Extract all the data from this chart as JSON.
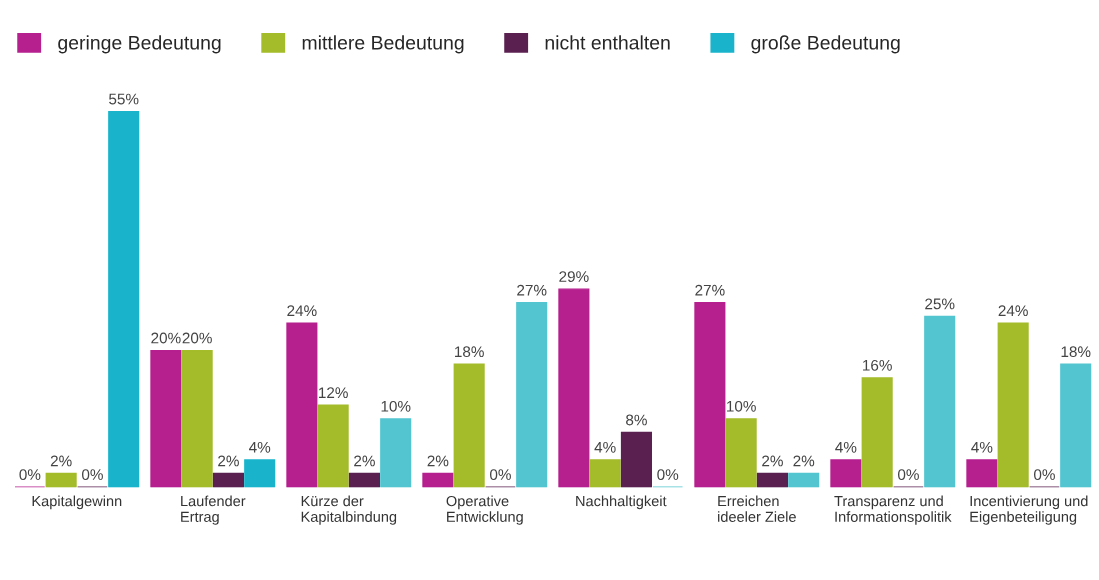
{
  "chart_data": {
    "type": "bar",
    "categories": [
      "Kapitalgewinn",
      "Laufender\nErtrag",
      "Kürze der\nKapitalbindung",
      "Operative\nEntwicklung",
      "Nachhaltigkeit",
      "Erreichen\nideeler Ziele",
      "Transparenz und\nInformationspolitik",
      "Incentivierung und\nEigenbeteiligung"
    ],
    "series": [
      {
        "name": "geringe Bedeutung",
        "color": "#b51f8e",
        "values": [
          0,
          20,
          24,
          2,
          29,
          27,
          4,
          4
        ],
        "value_labels": [
          "0%",
          "20%",
          "24%",
          "2%",
          "29%",
          "27%",
          "4%",
          "4%"
        ]
      },
      {
        "name": "mittlere Bedeutung",
        "color": "#a4bb2a",
        "values": [
          2,
          20,
          12,
          18,
          4,
          10,
          16,
          24
        ],
        "value_labels": [
          "2%",
          "20%",
          "12%",
          "18%",
          "4%",
          "10%",
          "16%",
          "24%"
        ]
      },
      {
        "name": "nicht enthalten",
        "color": "#5a2150",
        "values": [
          0,
          2,
          2,
          0,
          8,
          2,
          0,
          0
        ],
        "value_labels": [
          "0%",
          "2%",
          "2%",
          "0%",
          "8%",
          "2%",
          "0%",
          "0%"
        ]
      },
      {
        "name": "große Bedeutung",
        "color": "#19b4cb",
        "colors": [
          "#19b4cb",
          "#19b4cb",
          "#52c5d0",
          "#52c5d0",
          "#52c5d0",
          "#52c5d0",
          "#52c5d0",
          "#52c5d0"
        ],
        "values": [
          55,
          4,
          10,
          27,
          0,
          2,
          25,
          18
        ],
        "value_labels": [
          "55%",
          "4%",
          "10%",
          "27%",
          "0%",
          "2%",
          "25%",
          "18%"
        ]
      }
    ],
    "legend": "top left",
    "grid": false
  }
}
